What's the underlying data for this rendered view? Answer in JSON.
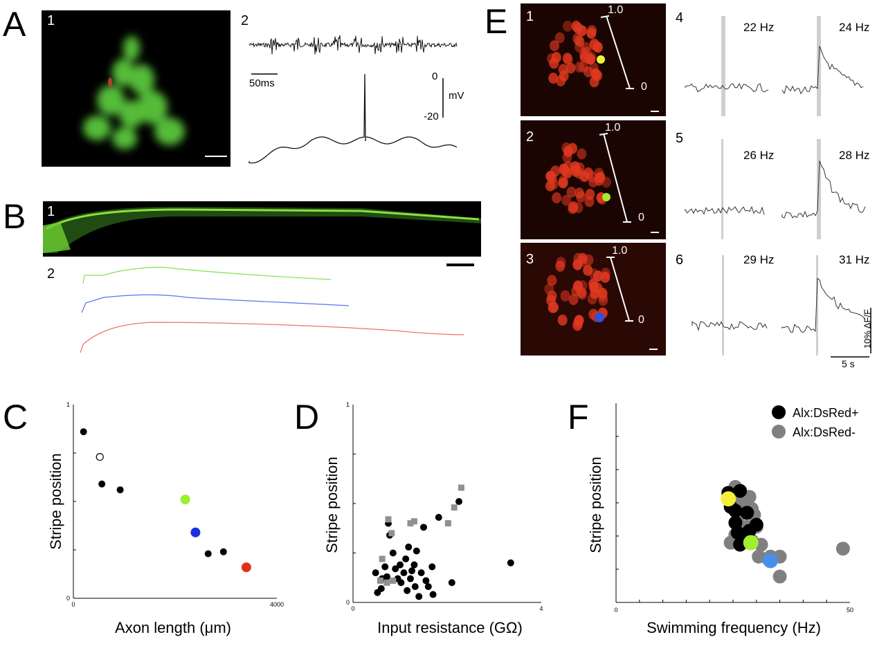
{
  "panel_labels": {
    "A": "A",
    "B": "B",
    "C": "C",
    "D": "D",
    "E": "E",
    "F": "F"
  },
  "panel_A": {
    "sub1": "1",
    "sub2": "2",
    "time_scale": "50ms",
    "v_top": "0",
    "v_bottom": "-20",
    "v_unit": "mV"
  },
  "panel_B": {
    "sub1": "1",
    "sub2": "2"
  },
  "panel_E": {
    "rows": [
      {
        "image_label": "1",
        "top_tick": "1.0",
        "bottom_tick": "0",
        "trace_label": "4",
        "freq_left": "22 Hz",
        "freq_right": "24 Hz"
      },
      {
        "image_label": "2",
        "top_tick": "1.0",
        "bottom_tick": "0",
        "trace_label": "5",
        "freq_left": "26 Hz",
        "freq_right": "28 Hz"
      },
      {
        "image_label": "3",
        "top_tick": "1.0",
        "bottom_tick": "0",
        "trace_label": "6",
        "freq_left": "29 Hz",
        "freq_right": "31 Hz"
      }
    ],
    "df_scale": "10% ΔF/F",
    "time_scale": "5 s"
  },
  "chart_data": [
    {
      "panel": "C",
      "type": "scatter",
      "xlabel": "Axon length (μm)",
      "ylabel": "Stripe position",
      "xlim": [
        0,
        4000
      ],
      "ylim": [
        0,
        1
      ],
      "x_ticks": [
        "0",
        "4000"
      ],
      "y_ticks": [
        "0",
        "1"
      ],
      "points": [
        {
          "x": 200,
          "y": 0.86,
          "color": "#000000",
          "fill": true
        },
        {
          "x": 520,
          "y": 0.73,
          "color": "#000000",
          "fill": false
        },
        {
          "x": 560,
          "y": 0.59,
          "color": "#000000",
          "fill": true
        },
        {
          "x": 920,
          "y": 0.56,
          "color": "#000000",
          "fill": true
        },
        {
          "x": 2200,
          "y": 0.51,
          "color": "#9af02a",
          "fill": true
        },
        {
          "x": 2400,
          "y": 0.34,
          "color": "#1a2ee0",
          "fill": true
        },
        {
          "x": 2650,
          "y": 0.23,
          "color": "#000000",
          "fill": true
        },
        {
          "x": 2950,
          "y": 0.24,
          "color": "#000000",
          "fill": true
        },
        {
          "x": 3400,
          "y": 0.16,
          "color": "#e0301a",
          "fill": true
        }
      ]
    },
    {
      "panel": "D",
      "type": "scatter",
      "xlabel": "Input resistance (GΩ)",
      "ylabel": "Stripe position",
      "xlim": [
        0,
        4
      ],
      "ylim": [
        0,
        1
      ],
      "x_ticks": [
        "0",
        "4"
      ],
      "y_ticks": [
        "0",
        "1"
      ],
      "series": [
        {
          "marker": "circle",
          "color": "#000000",
          "points": [
            [
              0.48,
              0.15
            ],
            [
              0.52,
              0.05
            ],
            [
              0.6,
              0.07
            ],
            [
              0.62,
              0.12
            ],
            [
              0.68,
              0.18
            ],
            [
              0.72,
              0.13
            ],
            [
              0.75,
              0.4
            ],
            [
              0.78,
              0.34
            ],
            [
              0.85,
              0.25
            ],
            [
              0.9,
              0.17
            ],
            [
              0.95,
              0.12
            ],
            [
              1.0,
              0.19
            ],
            [
              1.02,
              0.1
            ],
            [
              1.08,
              0.15
            ],
            [
              1.12,
              0.22
            ],
            [
              1.15,
              0.06
            ],
            [
              1.18,
              0.28
            ],
            [
              1.22,
              0.12
            ],
            [
              1.25,
              0.16
            ],
            [
              1.3,
              0.19
            ],
            [
              1.32,
              0.08
            ],
            [
              1.35,
              0.26
            ],
            [
              1.4,
              0.03
            ],
            [
              1.45,
              0.15
            ],
            [
              1.5,
              0.38
            ],
            [
              1.55,
              0.11
            ],
            [
              1.6,
              0.08
            ],
            [
              1.68,
              0.18
            ],
            [
              1.7,
              0.04
            ],
            [
              1.82,
              0.43
            ],
            [
              2.1,
              0.1
            ],
            [
              2.25,
              0.51
            ],
            [
              3.35,
              0.2
            ]
          ]
        },
        {
          "marker": "square",
          "color": "#909090",
          "points": [
            [
              0.58,
              0.11
            ],
            [
              0.62,
              0.22
            ],
            [
              0.72,
              0.1
            ],
            [
              0.75,
              0.42
            ],
            [
              0.82,
              0.35
            ],
            [
              0.85,
              0.11
            ],
            [
              1.22,
              0.4
            ],
            [
              1.3,
              0.41
            ],
            [
              2.02,
              0.4
            ],
            [
              2.15,
              0.48
            ],
            [
              2.3,
              0.58
            ]
          ]
        }
      ]
    },
    {
      "panel": "F",
      "type": "scatter",
      "xlabel": "Swimming frequency (Hz)",
      "ylabel": "Stripe position",
      "xlim": [
        0,
        50
      ],
      "ylim": [
        0,
        1
      ],
      "x_ticks": [
        "0",
        "50"
      ],
      "legend": [
        {
          "label": "Alx:DsRed+",
          "color": "#000000"
        },
        {
          "label": "Alx:DsRed-",
          "color": "#808080"
        }
      ],
      "legend_position": "top-right",
      "series": [
        {
          "name": "Alx:DsRed-",
          "color": "#808080",
          "points": [
            [
              25.5,
              0.58
            ],
            [
              26.0,
              0.54
            ],
            [
              27.0,
              0.52
            ],
            [
              25.0,
              0.5
            ],
            [
              26.5,
              0.48
            ],
            [
              28.5,
              0.53
            ],
            [
              29.0,
              0.47
            ],
            [
              27.5,
              0.45
            ],
            [
              29.5,
              0.44
            ],
            [
              26.0,
              0.4
            ],
            [
              28.0,
              0.38
            ],
            [
              30.0,
              0.38
            ],
            [
              25.5,
              0.34
            ],
            [
              27.0,
              0.33
            ],
            [
              29.0,
              0.31
            ],
            [
              24.5,
              0.3
            ],
            [
              31.0,
              0.29
            ],
            [
              30.5,
              0.23
            ],
            [
              33.0,
              0.23
            ],
            [
              32.5,
              0.22
            ],
            [
              35.0,
              0.23
            ],
            [
              48.5,
              0.27
            ],
            [
              35.0,
              0.13
            ]
          ]
        },
        {
          "name": "Alx:DsRed+",
          "color": "#000000",
          "points": [
            [
              24.0,
              0.55
            ],
            [
              26.5,
              0.56
            ],
            [
              24.5,
              0.48
            ],
            [
              25.5,
              0.46
            ],
            [
              28.0,
              0.45
            ],
            [
              25.5,
              0.4
            ],
            [
              30.0,
              0.39
            ],
            [
              26.0,
              0.35
            ],
            [
              28.5,
              0.36
            ],
            [
              27.5,
              0.32
            ],
            [
              26.5,
              0.29
            ]
          ]
        },
        {
          "name": "",
          "color": "#f5f03a",
          "points": [
            [
              24.0,
              0.52
            ]
          ]
        },
        {
          "name": "",
          "color": "#a0f030",
          "points": [
            [
              28.8,
              0.3
            ]
          ]
        },
        {
          "name": "",
          "color": "#4a90e8",
          "points": [
            [
              33.0,
              0.21
            ]
          ]
        }
      ]
    }
  ]
}
